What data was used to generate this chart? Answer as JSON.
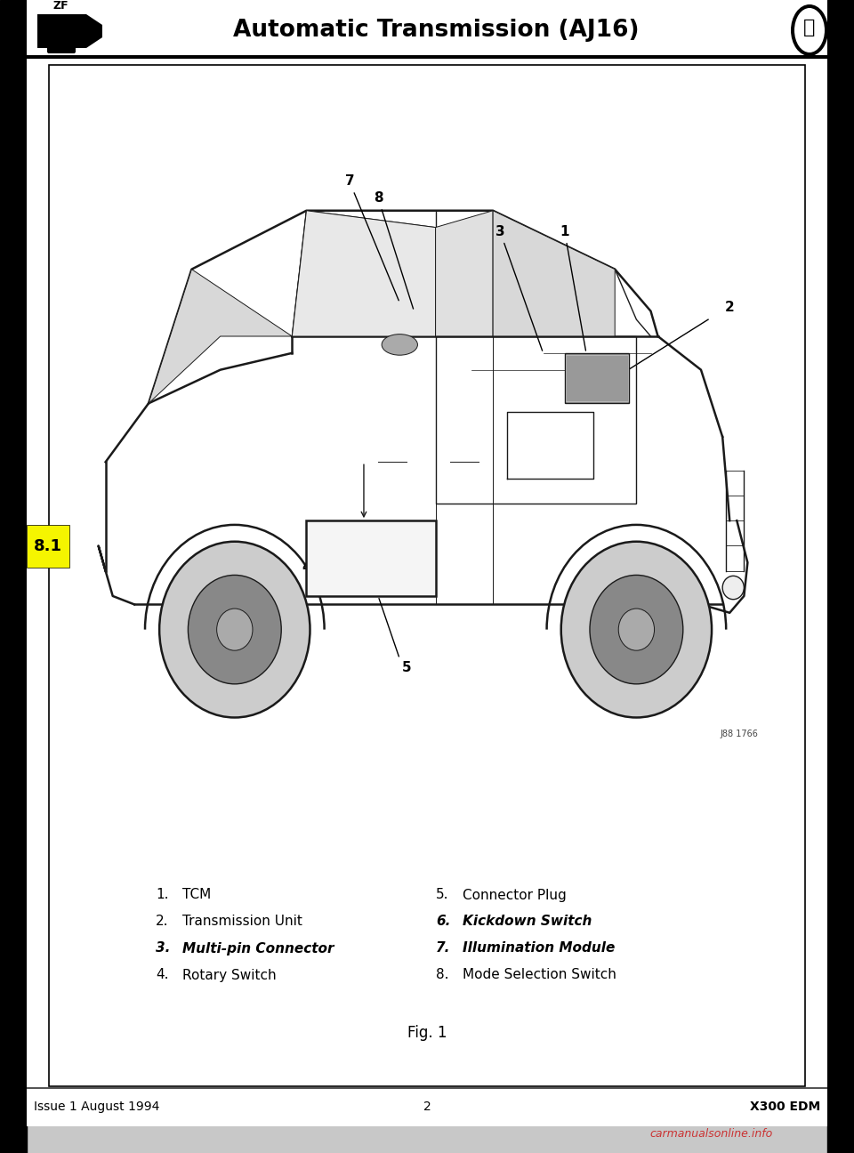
{
  "title": "Automatic Transmission (AJ16)",
  "header_line_color": "#000000",
  "bg_color": "#ffffff",
  "page_bg": "#c8c8c8",
  "section_label": "8.1",
  "footer_left": "Issue 1 August 1994",
  "footer_center": "2",
  "footer_right": "X300 EDM",
  "fig_caption": "Fig. 1",
  "legend_items_left": [
    [
      "1.",
      "TCM",
      false
    ],
    [
      "2.",
      "Transmission Unit",
      false
    ],
    [
      "3.",
      "Multi-pin Connector",
      true
    ],
    [
      "4.",
      "Rotary Switch",
      false
    ]
  ],
  "legend_items_right": [
    [
      "5.",
      "Connector Plug",
      false
    ],
    [
      "6.",
      "Kickdown Switch",
      true
    ],
    [
      "7.",
      "Illumination Module",
      true
    ],
    [
      "8.",
      "Mode Selection Switch",
      false
    ]
  ],
  "watermark": "carmanualsonline.info",
  "img_ref": "J88 1766"
}
